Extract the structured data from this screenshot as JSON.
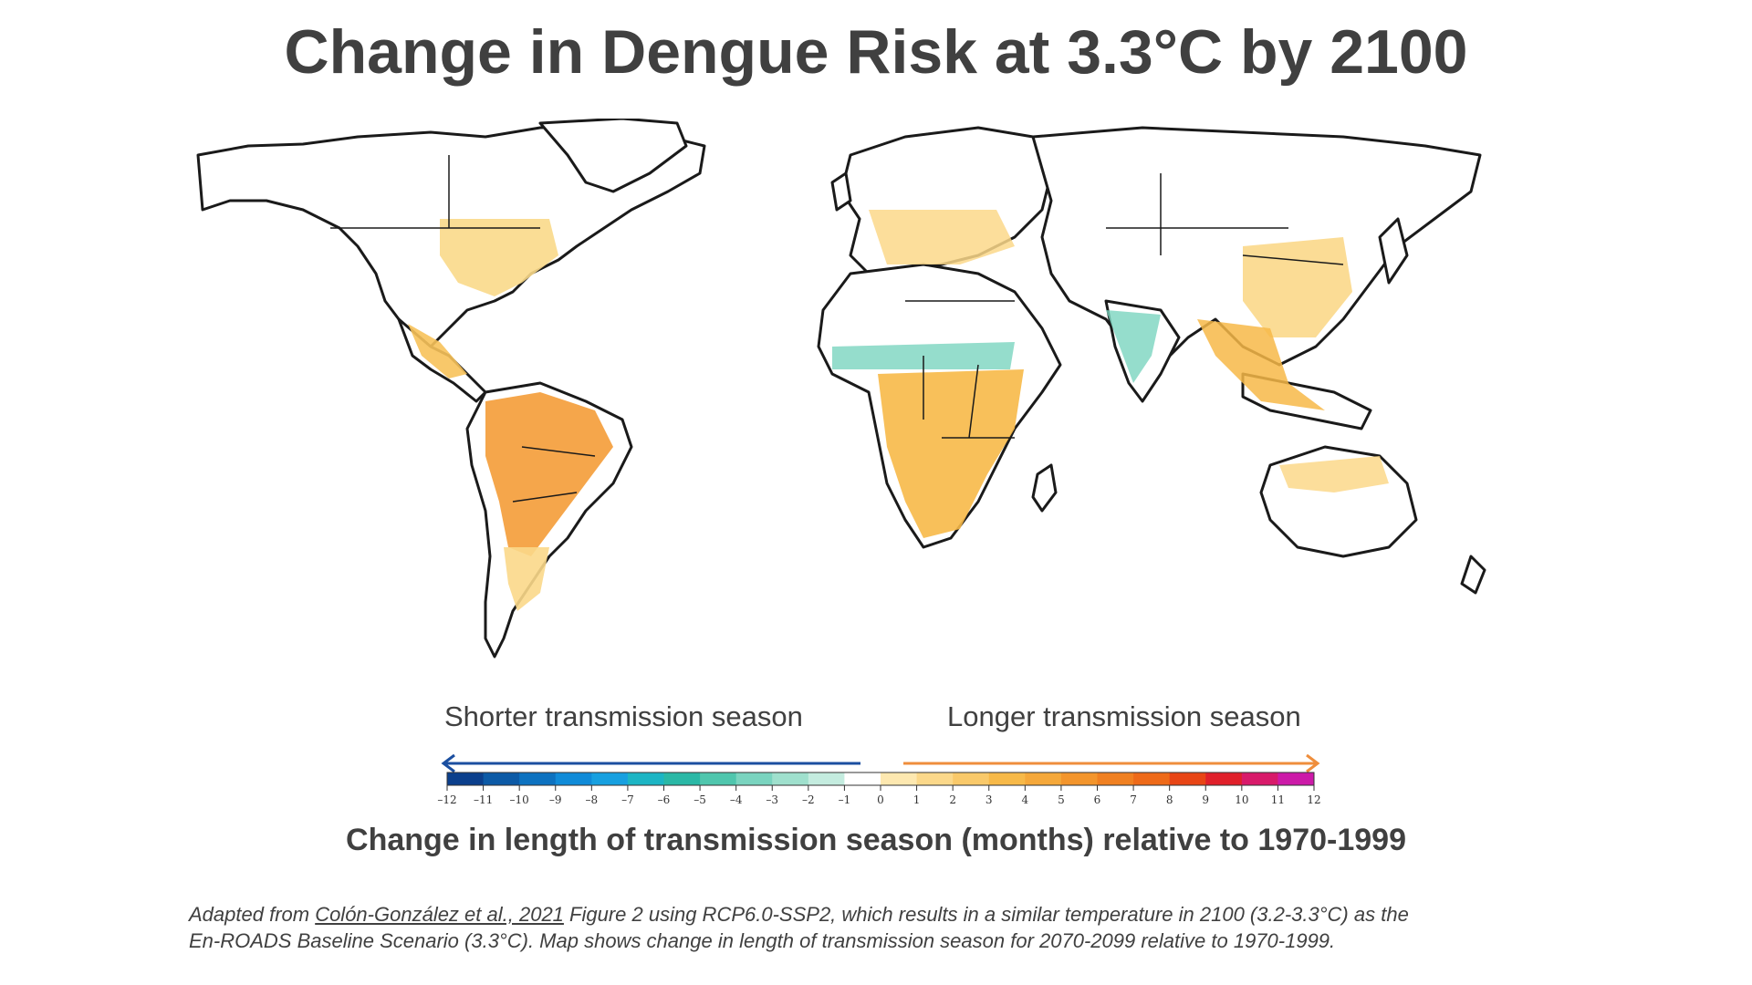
{
  "title": "Change in Dengue Risk at 3.3°C by 2100",
  "legend": {
    "shorter_label": "Shorter transmission season",
    "longer_label": "Longer transmission season",
    "ticks": [
      "–12",
      "–11",
      "–10",
      "–9",
      "–8",
      "–7",
      "–6",
      "–5",
      "–4",
      "–3",
      "–2",
      "–1",
      "0",
      "1",
      "2",
      "3",
      "4",
      "5",
      "6",
      "7",
      "8",
      "9",
      "10",
      "11",
      "12"
    ],
    "colors": [
      "#0b3f8c",
      "#0c5aa6",
      "#0d72c0",
      "#108bd8",
      "#17a0e0",
      "#1cb5c4",
      "#2ab8a6",
      "#4fc6ad",
      "#7ad4bf",
      "#9fe0cd",
      "#c4ecdf",
      "#ffffff",
      "#fde8b0",
      "#fbd88a",
      "#f9c96a",
      "#f7b948",
      "#f5a83a",
      "#f3952c",
      "#f08021",
      "#ee6a19",
      "#e84515",
      "#e0202a",
      "#d81a6a",
      "#cc1aa8"
    ],
    "left_arrow_color": "#1b4fa0",
    "right_arrow_color": "#ef8e3c"
  },
  "axis_label": "Change in length of transmission season (months) relative to 1970-1999",
  "caption": {
    "prefix": "Adapted from ",
    "link_text": "Colón-González et al., 2021",
    "rest_line1": " Figure 2 using RCP6.0-SSP2, which results in a similar temperature in 2100 (3.2-3.3°C) as the",
    "line2": "En-ROADS Baseline Scenario (3.3°C). Map shows change in length of transmission season for 2070-2099 relative to 1970-1999."
  },
  "map_regions": [
    {
      "name": "north-america",
      "risk_change": 2
    },
    {
      "name": "central-america",
      "risk_change": 3
    },
    {
      "name": "south-america",
      "risk_change": 5
    },
    {
      "name": "europe",
      "risk_change": 2
    },
    {
      "name": "sahel",
      "risk_change": -3
    },
    {
      "name": "central-africa",
      "risk_change": 4
    },
    {
      "name": "india",
      "risk_change": -3
    },
    {
      "name": "china",
      "risk_change": 2
    },
    {
      "name": "southeast-asia",
      "risk_change": 3
    },
    {
      "name": "australia",
      "risk_change": 2
    }
  ]
}
